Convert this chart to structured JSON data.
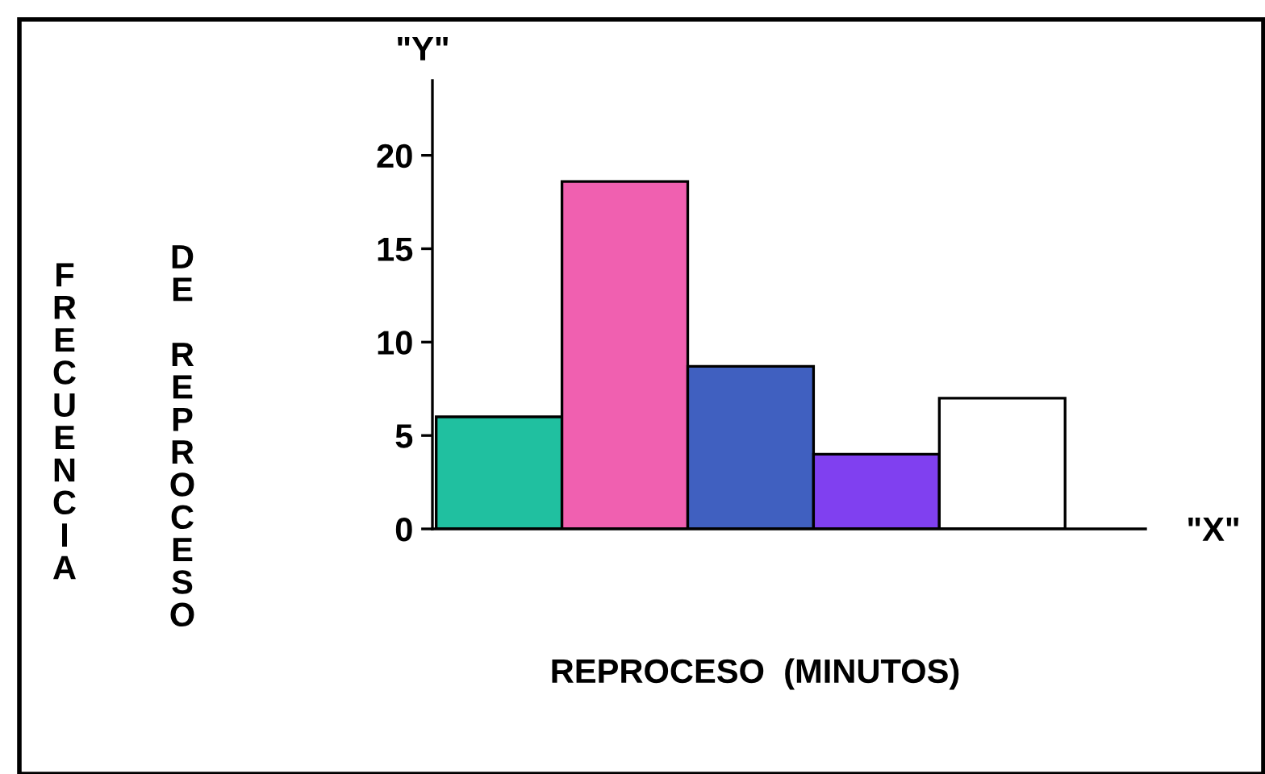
{
  "chart_data": {
    "type": "bar",
    "categories": [
      null,
      null,
      null,
      null,
      null
    ],
    "values": [
      6,
      18.6,
      8.7,
      4,
      7
    ],
    "colors": [
      "#20c0a0",
      "#f060b0",
      "#4060c0",
      "#8040f0",
      "#ffffff"
    ],
    "ylim": [
      0,
      24
    ],
    "yticks": [
      0,
      5,
      10,
      15,
      20
    ],
    "xlabel": "REPROCESO  (MINUTOS)",
    "ylabel": "FRECUENCIA DE REPROCESO",
    "annotations": [
      "\"Y\"",
      "\"X\""
    ],
    "grid": false,
    "legend": false
  }
}
